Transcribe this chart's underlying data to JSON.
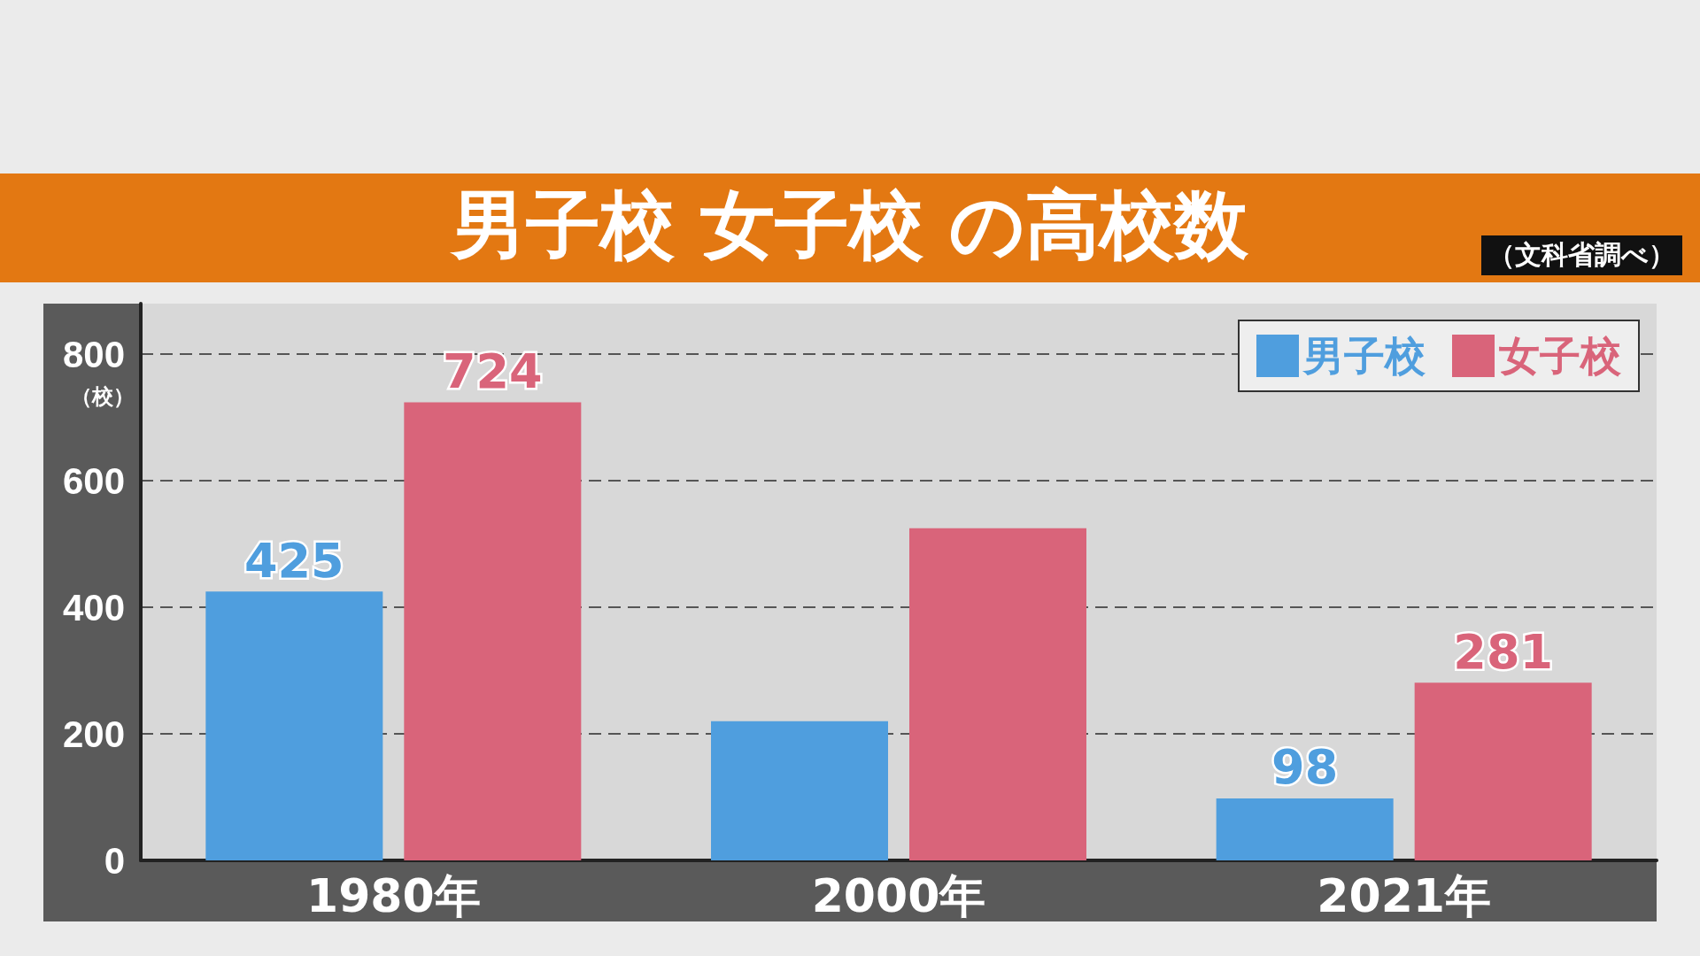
{
  "chart_data": {
    "type": "bar",
    "title": "男子校 女子校 の高校数",
    "annotations": [
      "（文科省調べ）"
    ],
    "ylabel": "（校）",
    "categories": [
      "1980年",
      "2000年",
      "2021年"
    ],
    "series": [
      {
        "name": "男子校",
        "color": "#4f9ede",
        "values": [
          425,
          220,
          98
        ],
        "value_labels": [
          "425",
          null,
          "98"
        ]
      },
      {
        "name": "女子校",
        "color": "#d9647a",
        "values": [
          724,
          525,
          281
        ],
        "value_labels": [
          "724",
          null,
          "281"
        ]
      }
    ],
    "ylim": [
      0,
      880
    ],
    "yticks": [
      0,
      200,
      400,
      600,
      800
    ],
    "grid": "y",
    "legend": "top right"
  }
}
